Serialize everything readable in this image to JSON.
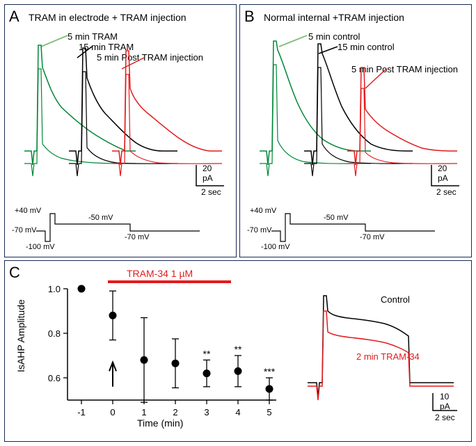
{
  "panelA": {
    "label": "A",
    "title": "TRAM in electrode + TRAM injection",
    "traces": {
      "green_label": "5 min TRAM",
      "black_label": "15 min TRAM",
      "red_label": "5 min Post TRAM injection"
    },
    "colors": {
      "green": "#008837",
      "black": "#000000",
      "red": "#e41a1c",
      "light_green_line": "#7fbf7b"
    },
    "scale": {
      "y_value": "20",
      "y_unit": "pA",
      "x_value": "2 sec"
    },
    "protocol": {
      "v1": "+40 mV",
      "v2": "-70 mV",
      "v3": "-100 mV",
      "v4": "-50 mV",
      "v5": "-70 mV"
    }
  },
  "panelB": {
    "label": "B",
    "title": "Normal internal +TRAM injection",
    "traces": {
      "green_label": "5 min control",
      "black_label": "15 min control",
      "red_label": "5 min Post TRAM injection"
    },
    "colors": {
      "green": "#008837",
      "black": "#000000",
      "red": "#e41a1c",
      "light_green_line": "#7fbf7b"
    },
    "scale": {
      "y_value": "20",
      "y_unit": "pA",
      "x_value": "2 sec"
    },
    "protocol": {
      "v1": "+40 mV",
      "v2": "-70 mV",
      "v3": "-100 mV",
      "v4": "-50 mV",
      "v5": "-70 mV"
    }
  },
  "panelC": {
    "label": "C",
    "drug_label": "TRAM-34 1 µM",
    "drug_color": "#e41a1c",
    "y_axis_label": "IsAHP Amplitude",
    "x_axis_label": "Time (min)",
    "x_ticks": [
      "-1",
      "0",
      "1",
      "2",
      "3",
      "4",
      "5"
    ],
    "y_ticks": [
      "0.6",
      "0.8",
      "1.0"
    ],
    "data_points": [
      {
        "x": -1,
        "y": 1.0,
        "err": 0
      },
      {
        "x": 0,
        "y": 0.88,
        "err": 0.11
      },
      {
        "x": 1,
        "y": 0.68,
        "err": 0.19
      },
      {
        "x": 2,
        "y": 0.665,
        "err": 0.11
      },
      {
        "x": 3,
        "y": 0.62,
        "err": 0.06,
        "sig": "**"
      },
      {
        "x": 4,
        "y": 0.63,
        "err": 0.07,
        "sig": "**"
      },
      {
        "x": 5,
        "y": 0.55,
        "err": 0.05,
        "sig": "***"
      }
    ],
    "inset": {
      "control_label": "Control",
      "tram_label": "2 min TRAM-34",
      "control_color": "#000000",
      "tram_color": "#e41a1c",
      "scale_y": "10",
      "scale_y_unit": "pA",
      "scale_x": "2 sec"
    }
  },
  "border_color": "#1a2855"
}
